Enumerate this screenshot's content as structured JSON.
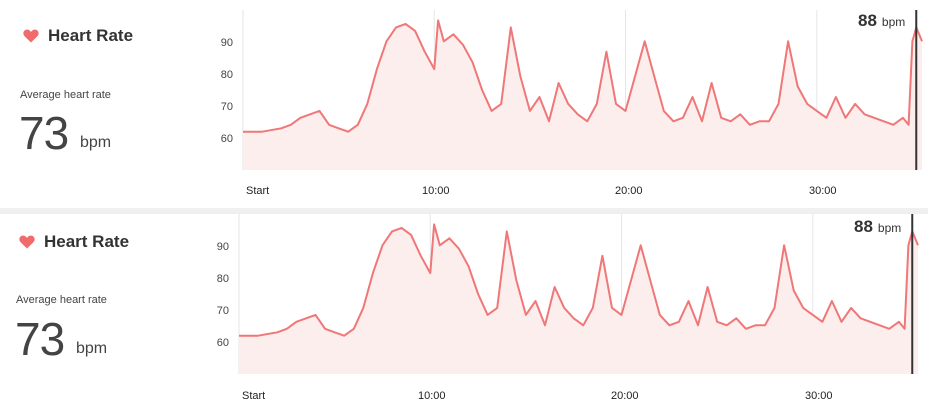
{
  "colors": {
    "line": "#f07777",
    "fill": "#fdeeee",
    "marker": "#333333",
    "heart": "#f26b6b",
    "grid": "#e6e6e6"
  },
  "panels": [
    {
      "title": "Heart Rate",
      "icon": "heart-icon",
      "avg_label": "Average heart rate",
      "avg_value": "73",
      "avg_unit": "bpm",
      "current_value": "88",
      "current_unit": "bpm"
    },
    {
      "title": "Heart Rate",
      "icon": "heart-icon",
      "avg_label": "Average heart rate",
      "avg_value": "73",
      "avg_unit": "bpm",
      "current_value": "88",
      "current_unit": "bpm"
    }
  ],
  "chart_data": {
    "type": "area",
    "xlabel": "",
    "ylabel": "",
    "x_ticks": [
      "Start",
      "10:00",
      "20:00",
      "30:00"
    ],
    "y_ticks": [
      "60",
      "70",
      "80",
      "90"
    ],
    "xlim": [
      0,
      35.5
    ],
    "ylim": [
      51,
      97
    ],
    "grid": true,
    "x": [
      0,
      1,
      2,
      2.5,
      3,
      4,
      4.5,
      5,
      5.5,
      6,
      6.5,
      7,
      7.5,
      8,
      8.5,
      9,
      9.5,
      10,
      10.2,
      10.5,
      11,
      11.5,
      12,
      12.5,
      13,
      13.5,
      14,
      14.5,
      15,
      15.5,
      16,
      16.5,
      17,
      17.5,
      18,
      18.5,
      19,
      19.5,
      20,
      20.5,
      21,
      21.5,
      22,
      22.5,
      23,
      23.5,
      24,
      24.5,
      25,
      25.5,
      26,
      26.5,
      27,
      27.5,
      28,
      28.5,
      29,
      29.5,
      30,
      30.5,
      31,
      31.5,
      32,
      32.5,
      33,
      33.5,
      34,
      34.5,
      34.8,
      35,
      35.2,
      35.5
    ],
    "y": [
      62,
      62,
      63,
      64,
      66,
      68,
      64,
      63,
      62,
      64,
      70,
      80,
      88,
      92,
      93,
      91,
      85,
      80,
      94,
      88,
      90,
      87,
      82,
      74,
      68,
      70,
      92,
      78,
      68,
      72,
      65,
      76,
      70,
      67,
      65,
      70,
      85,
      70,
      68,
      78,
      88,
      78,
      68,
      65,
      66,
      72,
      65,
      76,
      66,
      65,
      67,
      64,
      65,
      65,
      70,
      88,
      75,
      70,
      68,
      66,
      72,
      66,
      70,
      67,
      66,
      65,
      64,
      66,
      64,
      88,
      92,
      88
    ]
  }
}
